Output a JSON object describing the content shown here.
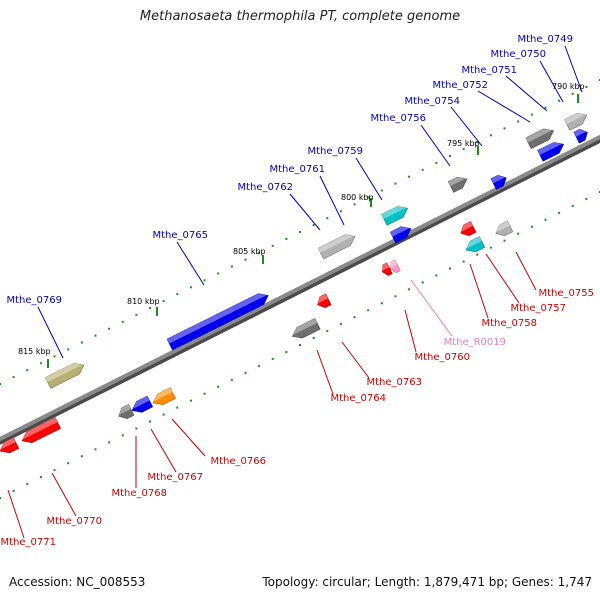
{
  "title": "Methanosaeta thermophila PT, complete genome",
  "footer": {
    "accession": "Accession: NC_008553",
    "topology": "Topology: circular; Length: 1,879,471 bp; Genes: 1,747"
  },
  "colors": {
    "forward_label": "#0000cc",
    "reverse_label": "#cc0000",
    "rna_label": "#e080c0",
    "backbone": "#8a8a8a",
    "tick": "#1e8c1e"
  },
  "ticks": [
    "790 kbp",
    "795 kbp",
    "800 kbp",
    "805 kbp",
    "810 kbp",
    "815 kbp"
  ],
  "genes": [
    {
      "id": "Mthe_0749",
      "strand": "forward",
      "color": "#b0b0b0"
    },
    {
      "id": "Mthe_0750",
      "strand": "forward",
      "color": "#0000ee"
    },
    {
      "id": "Mthe_0751",
      "strand": "forward",
      "color": "#0000ee"
    },
    {
      "id": "Mthe_0752",
      "strand": "forward",
      "color": "#6e6e6e"
    },
    {
      "id": "Mthe_0754",
      "strand": "forward",
      "color": "#0000ee"
    },
    {
      "id": "Mthe_0756",
      "strand": "forward",
      "color": "#6e6e6e"
    },
    {
      "id": "Mthe_0759",
      "strand": "forward",
      "color": "#00c0c8"
    },
    {
      "id": "Mthe_0761",
      "strand": "forward",
      "color": "#0000ee"
    },
    {
      "id": "Mthe_0762",
      "strand": "forward",
      "color": "#b0b0b0"
    },
    {
      "id": "Mthe_0765",
      "strand": "forward",
      "color": "#0000ee"
    },
    {
      "id": "Mthe_0769",
      "strand": "forward",
      "color": "#b8b070"
    },
    {
      "id": "Mthe_0755",
      "strand": "reverse",
      "color": "#b0b0b0"
    },
    {
      "id": "Mthe_0757",
      "strand": "reverse",
      "color": "#ff0000"
    },
    {
      "id": "Mthe_0758",
      "strand": "reverse",
      "color": "#00c0c8"
    },
    {
      "id": "Mthe_R0019",
      "strand": "reverse",
      "color": "#ff99cc"
    },
    {
      "id": "Mthe_0760",
      "strand": "reverse",
      "color": "#ff0000"
    },
    {
      "id": "Mthe_0763",
      "strand": "reverse",
      "color": "#ff0000"
    },
    {
      "id": "Mthe_0764",
      "strand": "reverse",
      "color": "#6e6e6e"
    },
    {
      "id": "Mthe_0766",
      "strand": "reverse",
      "color": "#ff8c00"
    },
    {
      "id": "Mthe_0767",
      "strand": "reverse",
      "color": "#0000ee"
    },
    {
      "id": "Mthe_0768",
      "strand": "reverse",
      "color": "#6e6e6e"
    },
    {
      "id": "Mthe_0770",
      "strand": "reverse",
      "color": "#ff0000"
    },
    {
      "id": "Mthe_0771",
      "strand": "reverse",
      "color": "#ff0000"
    }
  ]
}
